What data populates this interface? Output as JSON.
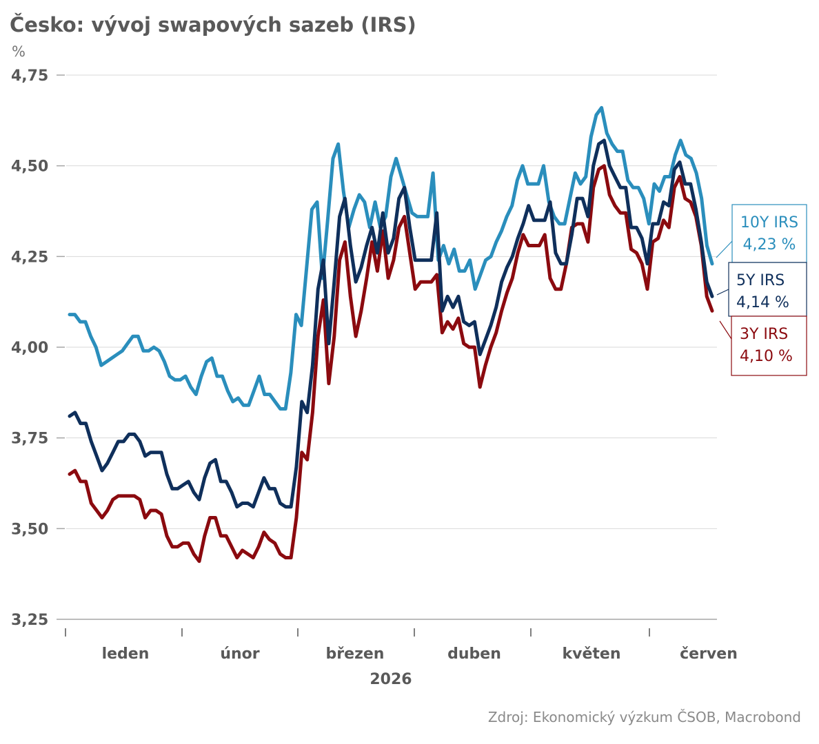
{
  "chart_data": {
    "type": "line",
    "title": "Česko: vývoj swapových sazeb (IRS)",
    "ylabel": "%",
    "xlabel": "2026",
    "ylim": [
      3.25,
      4.75
    ],
    "yticks": [
      "4,75",
      "4,50",
      "4,25",
      "4,00",
      "3,75",
      "3,50",
      "3,25"
    ],
    "yticks_values": [
      4.75,
      4.5,
      4.25,
      4.0,
      3.75,
      3.5,
      3.25
    ],
    "months": [
      "leden",
      "únor",
      "březen",
      "duben",
      "květen",
      "červen"
    ],
    "grid": true,
    "legend": "end-of-line labels, right",
    "colors": {
      "10Y IRS": "#2a8ebc",
      "5Y IRS": "#0f2f5b",
      "3Y IRS": "#8b0a0f"
    },
    "series": [
      {
        "name": "10Y IRS",
        "end_label": "4,23 %",
        "values": [
          4.09,
          4.09,
          4.07,
          4.07,
          4.03,
          4.0,
          3.95,
          3.96,
          3.97,
          3.98,
          3.99,
          4.01,
          4.03,
          4.03,
          3.99,
          3.99,
          4.0,
          3.99,
          3.96,
          3.92,
          3.91,
          3.91,
          3.92,
          3.89,
          3.87,
          3.92,
          3.96,
          3.97,
          3.92,
          3.92,
          3.88,
          3.85,
          3.86,
          3.84,
          3.84,
          3.88,
          3.92,
          3.87,
          3.87,
          3.85,
          3.83,
          3.83,
          3.93,
          4.09,
          4.06,
          4.22,
          4.38,
          4.4,
          4.19,
          4.35,
          4.52,
          4.56,
          4.43,
          4.33,
          4.38,
          4.42,
          4.4,
          4.33,
          4.4,
          4.33,
          4.36,
          4.47,
          4.52,
          4.47,
          4.42,
          4.37,
          4.36,
          4.36,
          4.36,
          4.48,
          4.24,
          4.28,
          4.23,
          4.27,
          4.21,
          4.21,
          4.24,
          4.16,
          4.2,
          4.24,
          4.25,
          4.29,
          4.32,
          4.36,
          4.39,
          4.46,
          4.5,
          4.45,
          4.45,
          4.45,
          4.5,
          4.4,
          4.36,
          4.34,
          4.34,
          4.41,
          4.48,
          4.45,
          4.47,
          4.58,
          4.64,
          4.66,
          4.59,
          4.56,
          4.54,
          4.54,
          4.46,
          4.44,
          4.44,
          4.41,
          4.34,
          4.45,
          4.43,
          4.47,
          4.47,
          4.53,
          4.57,
          4.53,
          4.52,
          4.48,
          4.41,
          4.28,
          4.23
        ]
      },
      {
        "name": "5Y IRS",
        "end_label": "4,14 %",
        "values": [
          3.81,
          3.82,
          3.79,
          3.79,
          3.74,
          3.7,
          3.66,
          3.68,
          3.71,
          3.74,
          3.74,
          3.76,
          3.76,
          3.74,
          3.7,
          3.71,
          3.71,
          3.71,
          3.65,
          3.61,
          3.61,
          3.62,
          3.63,
          3.6,
          3.58,
          3.64,
          3.68,
          3.69,
          3.63,
          3.63,
          3.6,
          3.56,
          3.57,
          3.57,
          3.56,
          3.6,
          3.64,
          3.61,
          3.61,
          3.57,
          3.56,
          3.56,
          3.67,
          3.85,
          3.82,
          3.95,
          4.16,
          4.24,
          4.01,
          4.18,
          4.36,
          4.41,
          4.28,
          4.18,
          4.22,
          4.28,
          4.33,
          4.26,
          4.37,
          4.26,
          4.3,
          4.41,
          4.44,
          4.33,
          4.24,
          4.24,
          4.24,
          4.24,
          4.37,
          4.1,
          4.14,
          4.11,
          4.14,
          4.07,
          4.06,
          4.07,
          3.98,
          4.02,
          4.06,
          4.11,
          4.18,
          4.22,
          4.25,
          4.3,
          4.34,
          4.39,
          4.35,
          4.35,
          4.35,
          4.4,
          4.26,
          4.23,
          4.23,
          4.31,
          4.41,
          4.41,
          4.36,
          4.5,
          4.56,
          4.57,
          4.5,
          4.47,
          4.44,
          4.44,
          4.33,
          4.33,
          4.3,
          4.23,
          4.34,
          4.34,
          4.4,
          4.39,
          4.49,
          4.51,
          4.45,
          4.45,
          4.38,
          4.29,
          4.18,
          4.14
        ]
      },
      {
        "name": "3Y IRS",
        "end_label": "4,10 %",
        "values": [
          3.65,
          3.66,
          3.63,
          3.63,
          3.57,
          3.55,
          3.53,
          3.55,
          3.58,
          3.59,
          3.59,
          3.59,
          3.59,
          3.58,
          3.53,
          3.55,
          3.55,
          3.54,
          3.48,
          3.45,
          3.45,
          3.46,
          3.46,
          3.43,
          3.41,
          3.48,
          3.53,
          3.53,
          3.48,
          3.48,
          3.45,
          3.42,
          3.44,
          3.43,
          3.42,
          3.45,
          3.49,
          3.47,
          3.46,
          3.43,
          3.42,
          3.42,
          3.53,
          3.71,
          3.69,
          3.82,
          4.03,
          4.13,
          3.9,
          4.03,
          4.24,
          4.29,
          4.14,
          4.03,
          4.1,
          4.19,
          4.29,
          4.21,
          4.32,
          4.19,
          4.24,
          4.33,
          4.36,
          4.26,
          4.16,
          4.18,
          4.18,
          4.18,
          4.2,
          4.04,
          4.07,
          4.05,
          4.08,
          4.01,
          4.0,
          4.0,
          3.89,
          3.95,
          4.0,
          4.04,
          4.1,
          4.15,
          4.19,
          4.26,
          4.31,
          4.28,
          4.28,
          4.28,
          4.31,
          4.19,
          4.16,
          4.16,
          4.23,
          4.33,
          4.34,
          4.34,
          4.29,
          4.44,
          4.49,
          4.5,
          4.42,
          4.39,
          4.37,
          4.37,
          4.27,
          4.26,
          4.23,
          4.16,
          4.29,
          4.3,
          4.35,
          4.33,
          4.44,
          4.47,
          4.41,
          4.4,
          4.36,
          4.28,
          4.14,
          4.1
        ]
      }
    ],
    "source": "Zdroj: Ekonomický výzkum ČSOB, Macrobond"
  }
}
